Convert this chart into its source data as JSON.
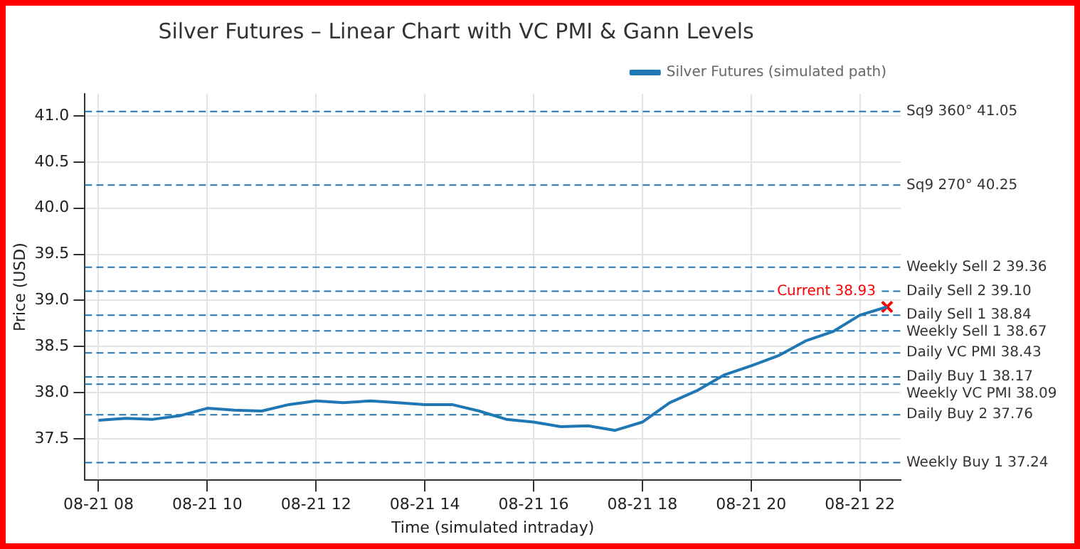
{
  "chart_data": {
    "type": "line",
    "title": "Silver Futures – Linear Chart with VC PMI & Gann Levels",
    "xlabel": "Time (simulated intraday)",
    "ylabel": "Price (USD)",
    "categories": [
      "08-21 08",
      null,
      null,
      null,
      "08-21 10",
      null,
      null,
      null,
      "08-21 12",
      null,
      null,
      null,
      "08-21 14",
      null,
      null,
      null,
      "08-21 16",
      null,
      null,
      null,
      "08-21 18",
      null,
      null,
      null,
      "08-21 20",
      null,
      null,
      null,
      "08-21 22",
      null
    ],
    "series": [
      {
        "name": "Silver Futures (simulated path)",
        "color": "#1f77b4",
        "values": [
          37.7,
          37.72,
          37.71,
          37.75,
          37.83,
          37.81,
          37.8,
          37.87,
          37.91,
          37.89,
          37.91,
          37.89,
          37.87,
          37.87,
          37.8,
          37.71,
          37.68,
          37.63,
          37.64,
          37.59,
          37.68,
          37.89,
          38.02,
          38.19,
          38.29,
          38.4,
          38.56,
          38.66,
          38.84,
          38.93
        ]
      },
      {
        "type": "scatter",
        "color": "#ff0000",
        "marker": "cross",
        "values": [
          null,
          null,
          null,
          null,
          null,
          null,
          null,
          null,
          null,
          null,
          null,
          null,
          null,
          null,
          null,
          null,
          null,
          null,
          null,
          null,
          null,
          null,
          null,
          null,
          null,
          null,
          null,
          null,
          null,
          38.93
        ]
      }
    ],
    "ylim": [
      37.05,
      41.24
    ],
    "yticks": [
      {
        "value": 37.5,
        "label": "37.5"
      },
      {
        "value": 38,
        "label": "38.0"
      },
      {
        "value": 38.5,
        "label": "38.5"
      },
      {
        "value": 39,
        "label": "39.0"
      },
      {
        "value": 39.5,
        "label": "39.5"
      },
      {
        "value": 40,
        "label": "40.0"
      },
      {
        "value": 40.5,
        "label": "40.5"
      },
      {
        "value": 41,
        "label": "41.0"
      }
    ],
    "ref_lines": [
      {
        "axis": "y",
        "value": 41.05,
        "label": "Sq9 360° 41.05",
        "color": "#1f77b4",
        "line_style": "dashed"
      },
      {
        "axis": "y",
        "value": 40.25,
        "label": "Sq9 270° 40.25",
        "color": "#1f77b4",
        "line_style": "dashed"
      },
      {
        "axis": "y",
        "value": 39.36,
        "label": "Weekly Sell 2 39.36",
        "color": "#1f77b4",
        "line_style": "dashed"
      },
      {
        "axis": "y",
        "value": 39.1,
        "label": "Daily Sell 2 39.10",
        "color": "#1f77b4",
        "line_style": "dashed"
      },
      {
        "axis": "y",
        "value": 38.84,
        "label": "Daily Sell 1 38.84",
        "color": "#1f77b4",
        "line_style": "dashed"
      },
      {
        "axis": "y",
        "value": 38.67,
        "label": "Weekly Sell 1 38.67",
        "color": "#1f77b4",
        "line_style": "dashed"
      },
      {
        "axis": "y",
        "value": 38.43,
        "label": "Daily VC PMI 38.43",
        "color": "#1f77b4",
        "line_style": "dashed"
      },
      {
        "axis": "y",
        "value": 38.17,
        "label": "Daily Buy 1 38.17",
        "color": "#1f77b4",
        "line_style": "dashed"
      },
      {
        "axis": "y",
        "value": 38.09,
        "label": "Weekly VC PMI 38.09",
        "color": "#1f77b4",
        "line_style": "dashed"
      },
      {
        "axis": "y",
        "value": 37.76,
        "label": "Daily Buy 2 37.76",
        "color": "#1f77b4",
        "line_style": "dashed"
      },
      {
        "axis": "y",
        "value": 37.24,
        "label": "Weekly Buy 1 37.24",
        "color": "#1f77b4",
        "line_style": "dashed"
      }
    ],
    "annotations": [
      "Current 38.93"
    ],
    "grid": true,
    "legend": "top right",
    "marker": "none",
    "line_style": "solid"
  }
}
